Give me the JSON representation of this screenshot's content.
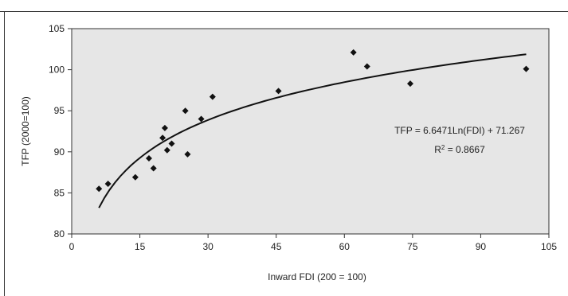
{
  "chart_data": {
    "type": "scatter",
    "xlabel": "Inward FDI (200 = 100)",
    "ylabel": "TFP (2000=100)",
    "xlim": [
      0,
      105
    ],
    "ylim": [
      80,
      105
    ],
    "xticks": [
      "0",
      "15",
      "30",
      "45",
      "60",
      "75",
      "90",
      "105"
    ],
    "yticks": [
      "80",
      "85",
      "90",
      "95",
      "100",
      "105"
    ],
    "grid": false,
    "points": [
      {
        "x": 6.0,
        "y": 85.5
      },
      {
        "x": 8.0,
        "y": 86.1
      },
      {
        "x": 14.0,
        "y": 86.9
      },
      {
        "x": 17.0,
        "y": 89.2
      },
      {
        "x": 18.0,
        "y": 88.0
      },
      {
        "x": 20.0,
        "y": 91.7
      },
      {
        "x": 20.5,
        "y": 92.9
      },
      {
        "x": 21.0,
        "y": 90.2
      },
      {
        "x": 22.0,
        "y": 91.0
      },
      {
        "x": 25.0,
        "y": 95.0
      },
      {
        "x": 25.5,
        "y": 89.7
      },
      {
        "x": 28.5,
        "y": 94.0
      },
      {
        "x": 31.0,
        "y": 96.7
      },
      {
        "x": 45.5,
        "y": 97.4
      },
      {
        "x": 62.0,
        "y": 102.1
      },
      {
        "x": 65.0,
        "y": 100.4
      },
      {
        "x": 74.5,
        "y": 98.3
      },
      {
        "x": 100.0,
        "y": 100.1
      }
    ],
    "trendline": {
      "type": "logarithmic",
      "a": 6.6471,
      "b": 71.267,
      "x_start": 6,
      "x_end": 100,
      "equation_label": "TFP = 6.6471Ln(FDI) + 71.267",
      "r2_prefix": "R",
      "r2_sup": "2",
      "r2_suffix": " = 0.8667"
    },
    "colors": {
      "plot_background": "#e6e6e6",
      "marker": "#111111",
      "trendline": "#111111",
      "frame": "#333333"
    }
  }
}
